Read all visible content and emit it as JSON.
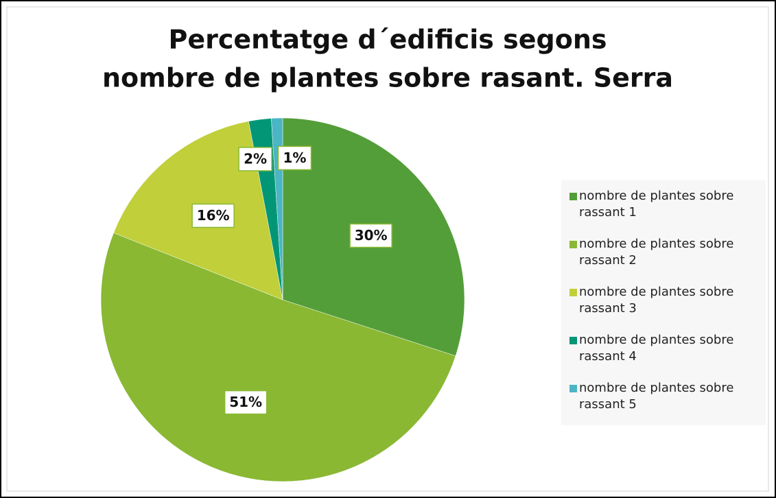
{
  "chart_data": {
    "type": "pie",
    "title": [
      "Percentatge d´edificis segons",
      "nombre de plantes sobre rasant. Serra"
    ],
    "categories": [
      "nombre de plantes sobre rassant 1",
      "nombre de plantes sobre rassant 2",
      "nombre de plantes sobre rassant 3",
      "nombre de plantes sobre rassant 4",
      "nombre de plantes sobre rassant 5"
    ],
    "values": [
      30,
      51,
      16,
      2,
      1
    ],
    "value_labels": [
      "30%",
      "51%",
      "16%",
      "2%",
      "1%"
    ],
    "colors": [
      "#549e39",
      "#8ab833",
      "#c0cf3a",
      "#029676",
      "#4ab5c4"
    ],
    "legend": "right"
  }
}
